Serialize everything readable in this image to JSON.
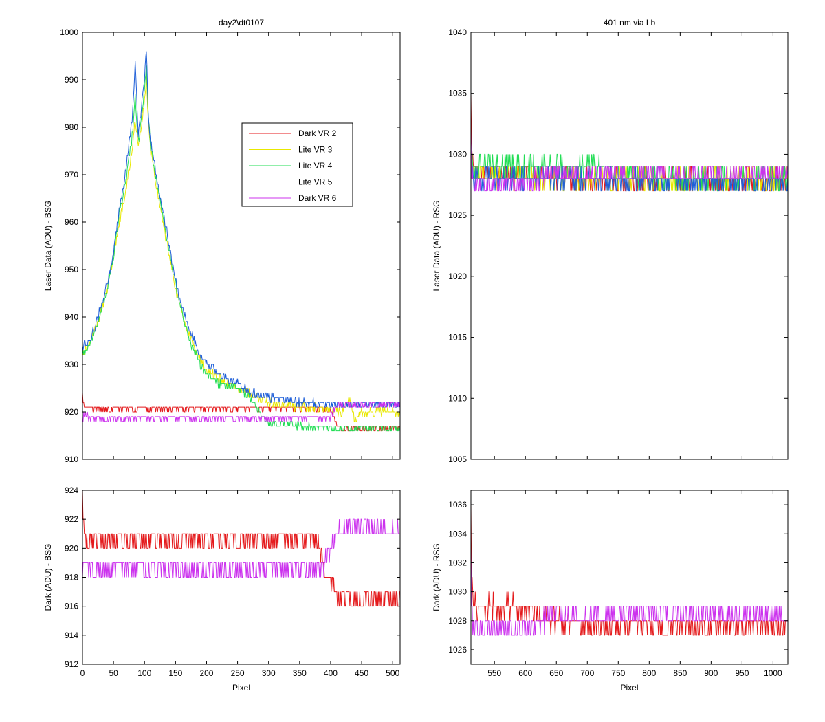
{
  "chart_data": [
    {
      "id": "bsg_laser",
      "type": "line",
      "title": "day2\\dt0107",
      "ylabel": "Laser Data (ADU) - BSG",
      "xlabel": "",
      "xlim": [
        0,
        512
      ],
      "ylim": [
        910,
        1000
      ],
      "x_ticks": [
        0,
        50,
        100,
        150,
        200,
        250,
        300,
        350,
        400,
        450,
        500
      ],
      "y_ticks": [
        910,
        920,
        930,
        940,
        950,
        960,
        970,
        980,
        990,
        1000
      ],
      "show_x_ticklabels": false,
      "legend": {
        "placement": "upper-right-center",
        "entries": [
          {
            "label": "Dark VR 2",
            "color": "#e41a1c"
          },
          {
            "label": "Lite VR 3",
            "color": "#e8e800"
          },
          {
            "label": "Lite VR 4",
            "color": "#22dd55"
          },
          {
            "label": "Lite VR 5",
            "color": "#1f5fd8"
          },
          {
            "label": "Dark VR 6",
            "color": "#cc33ee"
          }
        ]
      },
      "series": [
        {
          "name": "Dark VR 2",
          "color": "#e41a1c",
          "noise": 0.7,
          "x": [
            0,
            3,
            10,
            50,
            100,
            150,
            200,
            250,
            300,
            350,
            380,
            390,
            400,
            410,
            420,
            450,
            512
          ],
          "y": [
            924,
            921,
            920.8,
            920.8,
            920.8,
            920.8,
            920.8,
            920.8,
            920.8,
            920.8,
            920.8,
            920.8,
            920,
            917,
            916.5,
            916.5,
            916.5
          ]
        },
        {
          "name": "Lite VR 3",
          "color": "#e8e800",
          "noise": 0.8,
          "x": [
            0,
            10,
            20,
            30,
            40,
            50,
            60,
            70,
            80,
            85,
            90,
            95,
            100,
            103,
            106,
            110,
            120,
            130,
            140,
            150,
            160,
            170,
            180,
            190,
            200,
            220,
            250,
            270,
            300,
            350,
            400,
            420,
            430,
            440,
            450,
            500,
            512
          ],
          "y": [
            932,
            934,
            937,
            941,
            946,
            953,
            960,
            967,
            975,
            982,
            976,
            980,
            985,
            990,
            982,
            975,
            967,
            960,
            953,
            946,
            941,
            937,
            934,
            931,
            929,
            927,
            925,
            924,
            922,
            921,
            920.5,
            920,
            923,
            918,
            920,
            920,
            920
          ]
        },
        {
          "name": "Lite VR 4",
          "color": "#22dd55",
          "noise": 0.8,
          "x": [
            0,
            10,
            20,
            30,
            40,
            50,
            60,
            70,
            80,
            85,
            90,
            95,
            100,
            103,
            106,
            110,
            120,
            130,
            140,
            150,
            160,
            170,
            180,
            190,
            200,
            220,
            250,
            270,
            290,
            300,
            350,
            400,
            420,
            450,
            512
          ],
          "y": [
            932,
            934,
            937,
            941,
            946,
            953,
            962,
            969,
            978,
            986,
            977,
            982,
            988,
            993,
            983,
            976,
            968,
            961,
            954,
            947,
            941,
            936,
            933,
            930,
            928,
            926,
            925,
            923,
            919,
            917.5,
            917,
            916.5,
            916.5,
            916.5,
            916.5
          ]
        },
        {
          "name": "Lite VR 5",
          "color": "#1f5fd8",
          "noise": 0.8,
          "x": [
            0,
            10,
            20,
            30,
            40,
            50,
            60,
            70,
            80,
            85,
            90,
            95,
            100,
            103,
            106,
            110,
            120,
            130,
            140,
            150,
            160,
            170,
            180,
            190,
            200,
            220,
            250,
            270,
            300,
            350,
            400,
            450,
            512
          ],
          "y": [
            934,
            935,
            938,
            942,
            947,
            954,
            963,
            971,
            982,
            994,
            978,
            984,
            990,
            997,
            983,
            977,
            969,
            962,
            955,
            948,
            942,
            938,
            935,
            932,
            930,
            928,
            926,
            924,
            923,
            922,
            921.5,
            921.5,
            921.5
          ]
        },
        {
          "name": "Dark VR 6",
          "color": "#cc33ee",
          "noise": 0.7,
          "x": [
            0,
            3,
            10,
            50,
            100,
            150,
            200,
            250,
            300,
            350,
            380,
            390,
            400,
            410,
            420,
            450,
            512
          ],
          "y": [
            918,
            919.5,
            918.8,
            918.8,
            918.8,
            918.8,
            918.8,
            918.8,
            918.8,
            918.8,
            918.8,
            918.8,
            919,
            921,
            921.5,
            921.5,
            921.5
          ]
        }
      ]
    },
    {
      "id": "rsg_laser",
      "type": "line",
      "title": "401 nm via Lb",
      "ylabel": "Laser Data (ADU) - RSG",
      "xlabel": "",
      "xlim": [
        512,
        1024
      ],
      "ylim": [
        1005,
        1040
      ],
      "x_ticks": [
        550,
        600,
        650,
        700,
        750,
        800,
        850,
        900,
        950,
        1000
      ],
      "y_ticks": [
        1005,
        1010,
        1015,
        1020,
        1025,
        1030,
        1035,
        1040
      ],
      "show_x_ticklabels": false,
      "series": [
        {
          "name": "Dark VR 2",
          "color": "#e41a1c",
          "noise": 0.8,
          "x": [
            512,
            513,
            516,
            520,
            600,
            640,
            700,
            800,
            900,
            1024
          ],
          "y": [
            1036,
            1031,
            1029.5,
            1028.5,
            1028.5,
            1028,
            1027.8,
            1027.8,
            1027.8,
            1027.8
          ]
        },
        {
          "name": "Lite VR 3",
          "color": "#e8e800",
          "noise": 0.8,
          "x": [
            512,
            516,
            600,
            700,
            800,
            900,
            1024
          ],
          "y": [
            1030,
            1028.5,
            1028,
            1028,
            1028,
            1028,
            1028
          ]
        },
        {
          "name": "Lite VR 4",
          "color": "#22dd55",
          "noise": 0.8,
          "x": [
            512,
            516,
            600,
            700,
            760,
            800,
            900,
            1024
          ],
          "y": [
            1030,
            1029,
            1029,
            1029,
            1028.5,
            1028,
            1028,
            1028
          ]
        },
        {
          "name": "Lite VR 5",
          "color": "#1f5fd8",
          "noise": 0.7,
          "x": [
            512,
            516,
            600,
            700,
            800,
            900,
            1024
          ],
          "y": [
            1029,
            1028,
            1028,
            1028,
            1027.8,
            1027.8,
            1027.8
          ]
        },
        {
          "name": "Dark VR 6",
          "color": "#cc33ee",
          "noise": 0.8,
          "x": [
            512,
            513,
            516,
            520,
            600,
            640,
            700,
            800,
            900,
            1024
          ],
          "y": [
            1033,
            1029,
            1027.5,
            1027.5,
            1027.5,
            1028.3,
            1028.3,
            1028.3,
            1028.3,
            1028.3
          ]
        }
      ]
    },
    {
      "id": "bsg_dark",
      "type": "line",
      "title": "",
      "ylabel": "Dark (ADU) - BSG",
      "xlabel": "Pixel",
      "xlim": [
        0,
        512
      ],
      "ylim": [
        912,
        924
      ],
      "x_ticks": [
        0,
        50,
        100,
        150,
        200,
        250,
        300,
        350,
        400,
        450,
        500
      ],
      "y_ticks": [
        912,
        914,
        916,
        918,
        920,
        922,
        924
      ],
      "show_x_ticklabels": true,
      "series": [
        {
          "name": "Dark VR 2",
          "color": "#e41a1c",
          "noise": 0.6,
          "x": [
            0,
            2,
            8,
            50,
            100,
            150,
            200,
            250,
            300,
            350,
            380,
            390,
            400,
            410,
            420,
            450,
            512
          ],
          "y": [
            924,
            921,
            920.6,
            920.6,
            920.6,
            920.6,
            920.6,
            920.6,
            920.6,
            920.6,
            920.6,
            918.5,
            918,
            917,
            916.5,
            916.5,
            916.5
          ]
        },
        {
          "name": "Dark VR 6",
          "color": "#cc33ee",
          "noise": 0.6,
          "x": [
            0,
            2,
            8,
            50,
            100,
            150,
            200,
            250,
            300,
            350,
            380,
            390,
            400,
            410,
            420,
            450,
            512
          ],
          "y": [
            918,
            919.5,
            918.6,
            918.6,
            918.6,
            918.6,
            918.6,
            918.6,
            918.6,
            918.6,
            918.6,
            918.8,
            920,
            921.2,
            921.4,
            921.4,
            921.4
          ]
        }
      ]
    },
    {
      "id": "rsg_dark",
      "type": "line",
      "title": "",
      "ylabel": "Dark (ADU) - RSG",
      "xlabel": "Pixel",
      "xlim": [
        512,
        1024
      ],
      "ylim": [
        1025,
        1037
      ],
      "x_ticks": [
        550,
        600,
        650,
        700,
        750,
        800,
        850,
        900,
        950,
        1000
      ],
      "y_ticks": [
        1026,
        1028,
        1030,
        1032,
        1034,
        1036
      ],
      "show_x_ticklabels": true,
      "series": [
        {
          "name": "Dark VR 2",
          "color": "#e41a1c",
          "noise": 0.7,
          "x": [
            512,
            513,
            516,
            520,
            600,
            640,
            700,
            800,
            900,
            1024
          ],
          "y": [
            1036,
            1031,
            1029.3,
            1029,
            1028.8,
            1028,
            1027.8,
            1027.8,
            1027.8,
            1027.8
          ]
        },
        {
          "name": "Dark VR 6",
          "color": "#cc33ee",
          "noise": 0.7,
          "x": [
            512,
            513,
            516,
            520,
            600,
            640,
            700,
            800,
            900,
            1024
          ],
          "y": [
            1033,
            1028.5,
            1027.5,
            1027.3,
            1027.3,
            1028.3,
            1028.3,
            1028.3,
            1028.3,
            1028.3
          ]
        }
      ]
    }
  ]
}
